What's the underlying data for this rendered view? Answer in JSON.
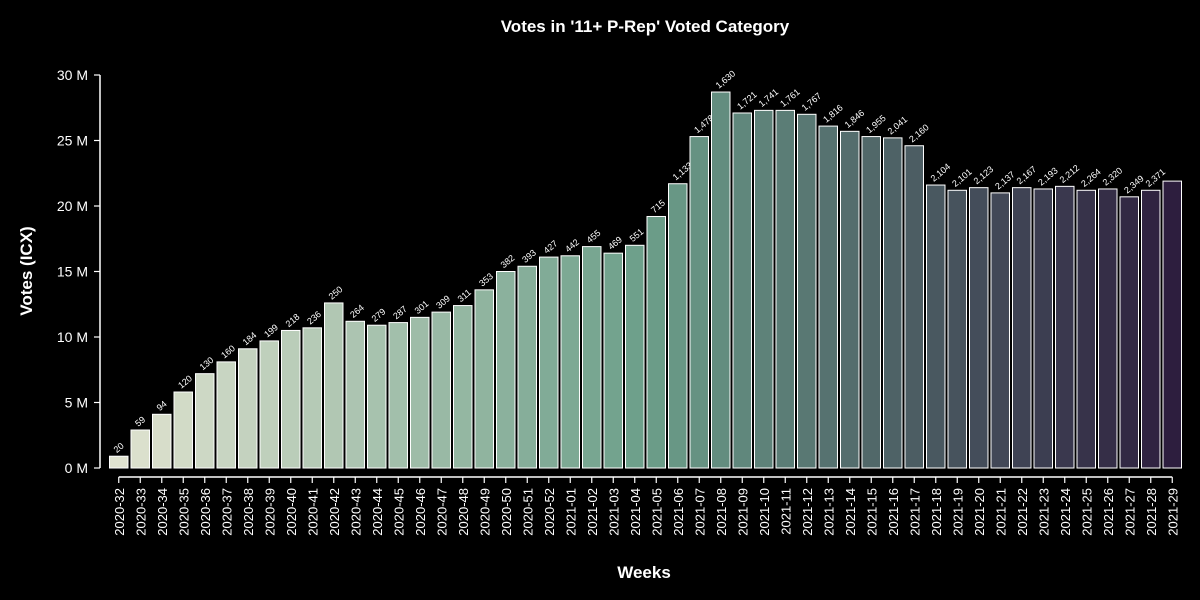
{
  "chart_data": {
    "type": "bar",
    "title": "Votes in '11+ P-Rep' Voted Category",
    "xlabel": "Weeks",
    "ylabel": "Votes (ICX)",
    "ylim": [
      0,
      30000000
    ],
    "yticks": [
      {
        "value": 0,
        "label": "0 M"
      },
      {
        "value": 5000000,
        "label": "5 M"
      },
      {
        "value": 10000000,
        "label": "10 M"
      },
      {
        "value": 15000000,
        "label": "15 M"
      },
      {
        "value": 20000000,
        "label": "20 M"
      },
      {
        "value": 25000000,
        "label": "25 M"
      },
      {
        "value": 30000000,
        "label": "30 M"
      }
    ],
    "grid": false,
    "legend": "none",
    "palette": {
      "start": "#e0e3d0",
      "mid": "#6c9f8a",
      "end": "#2d1e3e"
    },
    "categories": [
      "2020-32",
      "2020-33",
      "2020-34",
      "2020-35",
      "2020-36",
      "2020-37",
      "2020-38",
      "2020-39",
      "2020-40",
      "2020-41",
      "2020-42",
      "2020-43",
      "2020-44",
      "2020-45",
      "2020-46",
      "2020-47",
      "2020-48",
      "2020-49",
      "2020-50",
      "2020-51",
      "2020-52",
      "2021-01",
      "2021-02",
      "2021-03",
      "2021-04",
      "2021-05",
      "2021-06",
      "2021-07",
      "2021-08",
      "2021-09",
      "2021-10",
      "2021-11",
      "2021-12",
      "2021-13",
      "2021-14",
      "2021-15",
      "2021-16",
      "2021-17",
      "2021-18",
      "2021-19",
      "2021-20",
      "2021-21",
      "2021-22",
      "2021-23",
      "2021-24",
      "2021-25",
      "2021-26",
      "2021-27",
      "2021-28",
      "2021-29"
    ],
    "values": [
      900000,
      2900000,
      4100000,
      5800000,
      7200000,
      8100000,
      9100000,
      9700000,
      10500000,
      10700000,
      12600000,
      11200000,
      10900000,
      11100000,
      11500000,
      11900000,
      12400000,
      13600000,
      15000000,
      15400000,
      16100000,
      16200000,
      16900000,
      16400000,
      17000000,
      19200000,
      21700000,
      25300000,
      28700000,
      27100000,
      27300000,
      27300000,
      27000000,
      26100000,
      25700000,
      25300000,
      25200000,
      24600000,
      21600000,
      21200000,
      21400000,
      21000000,
      21400000,
      21300000,
      21500000,
      21200000,
      21300000,
      20700000,
      21200000,
      21900000
    ],
    "data_labels": [
      "20",
      "59",
      "94",
      "120",
      "130",
      "160",
      "184",
      "199",
      "218",
      "236",
      "250",
      "264",
      "279",
      "287",
      "301",
      "309",
      "311",
      "353",
      "382",
      "393",
      "427",
      "442",
      "455",
      "469",
      "551",
      "715",
      "1,133",
      "1,478",
      "1,630",
      "1,721",
      "1,741",
      "1,761",
      "1,767",
      "1,816",
      "1,846",
      "1,955",
      "2,041",
      "2,160",
      "2,104",
      "2,101",
      "2,123",
      "2,137",
      "2,167",
      "2,193",
      "2,212",
      "2,264",
      "2,320",
      "2,349",
      "2,371",
      ""
    ]
  }
}
